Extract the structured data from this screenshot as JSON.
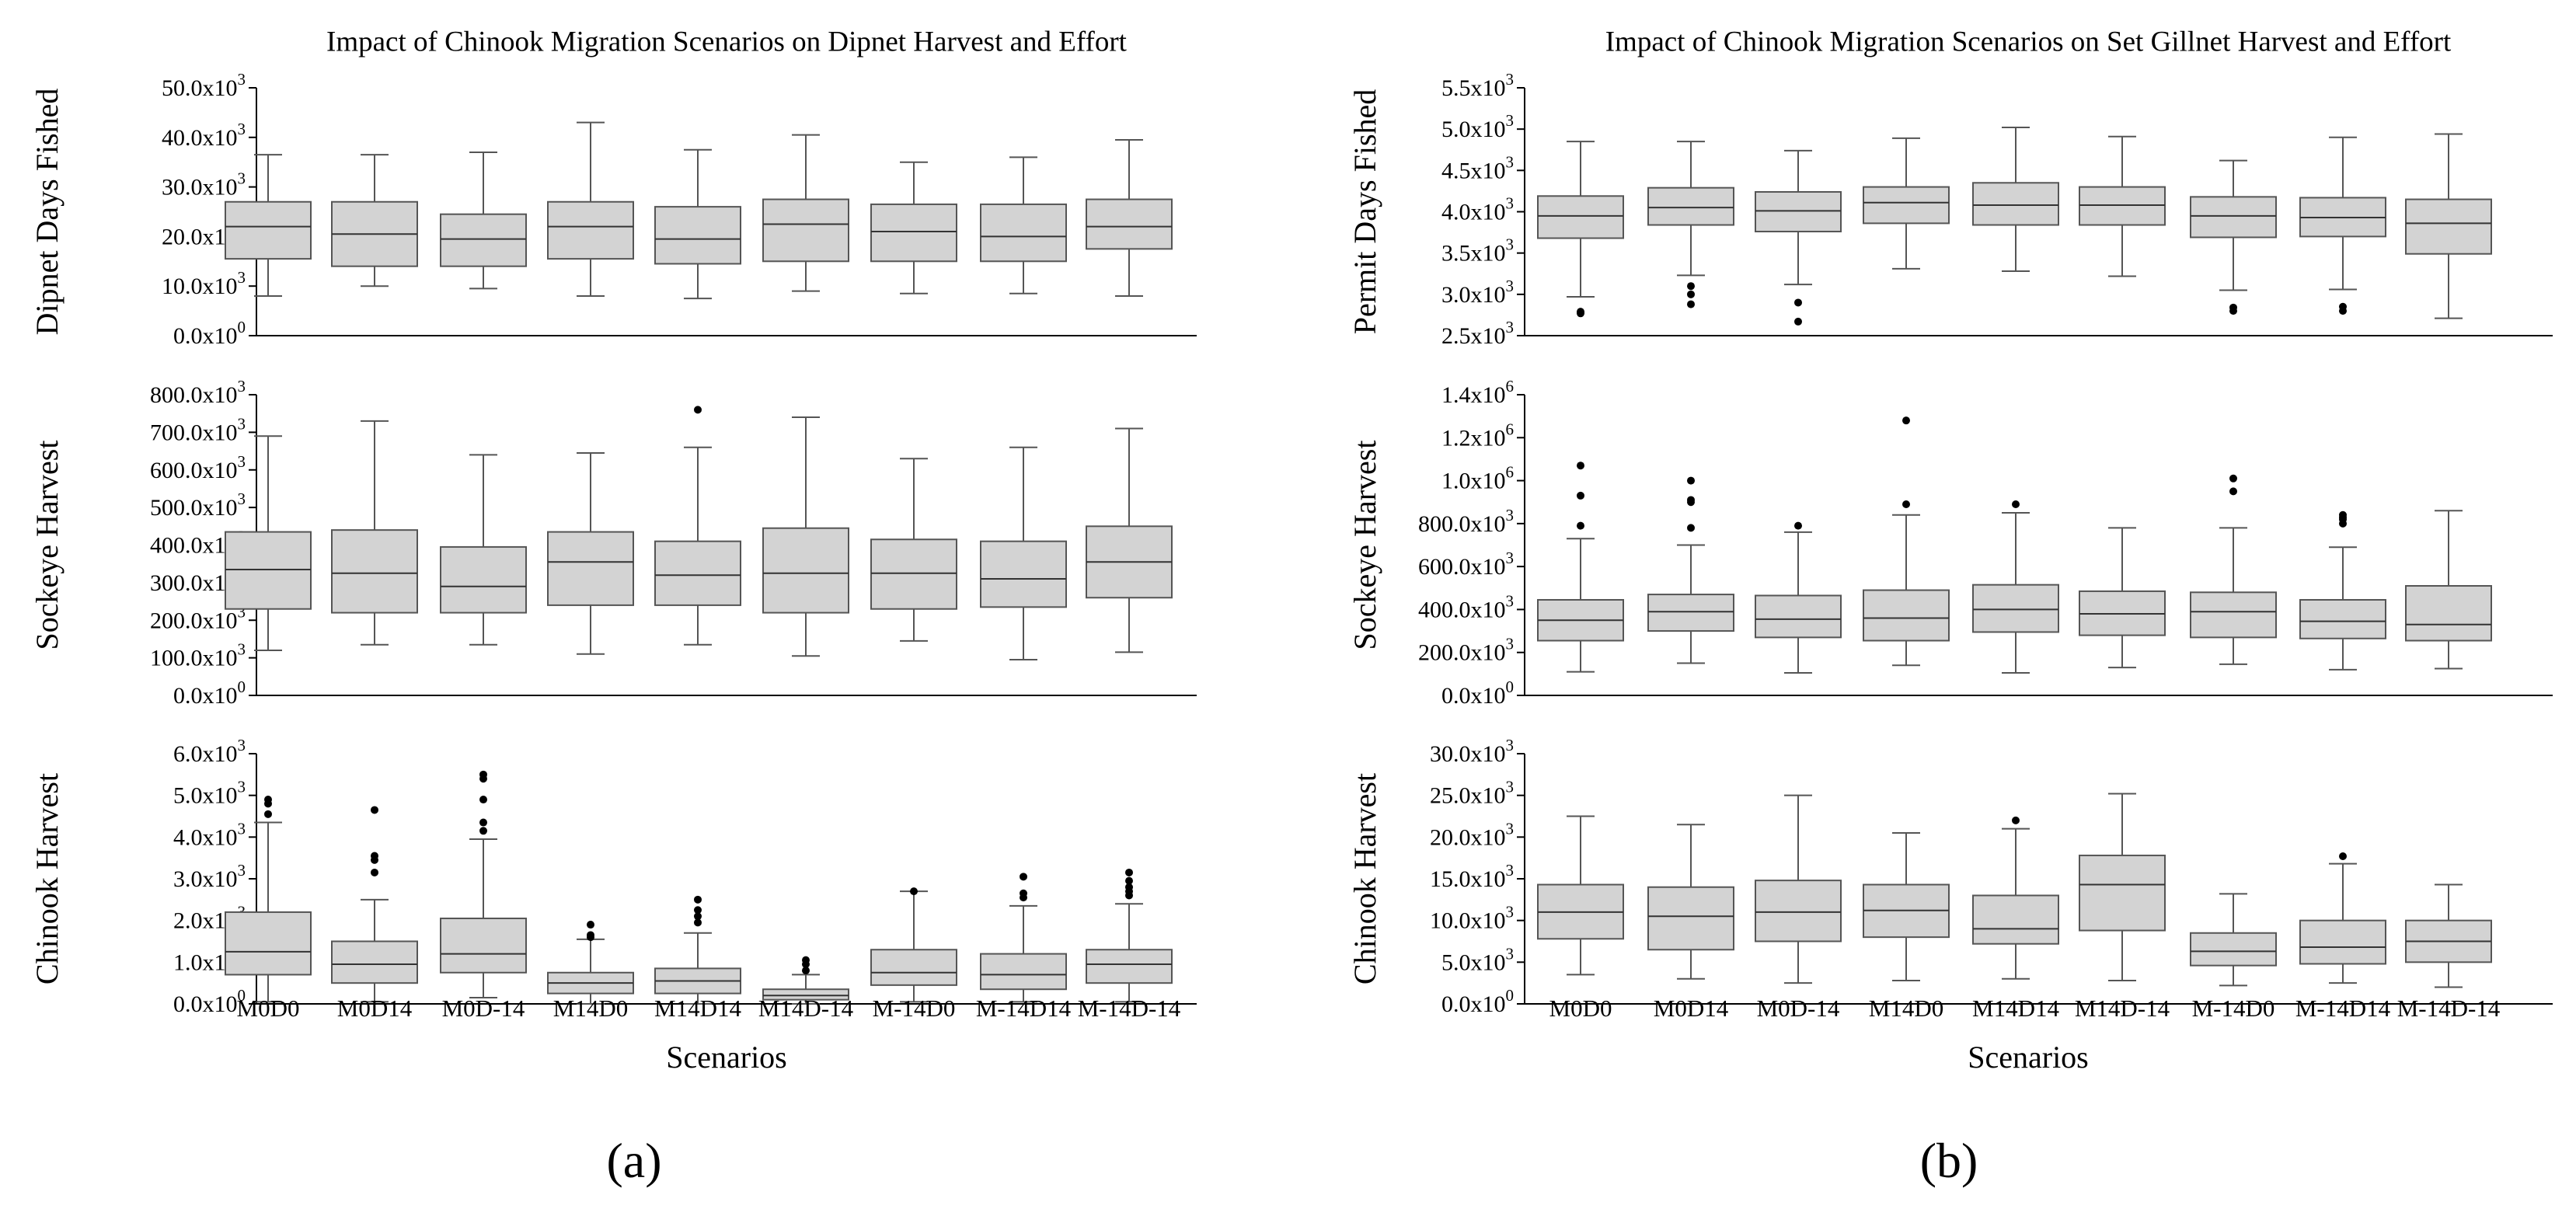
{
  "figure": {
    "tag_a": "(a)",
    "tag_b": "(b)"
  },
  "chart_data": [
    {
      "type": "box",
      "panel": "a",
      "title": "Impact of Chinook Migration Scenarios on Dipnet Harvest and Effort",
      "xlabel": "Scenarios",
      "categories": [
        "M0D0",
        "M0D14",
        "M0D-14",
        "M14D0",
        "M14D14",
        "M14D-14",
        "M-14D0",
        "M-14D14",
        "M-14D-14"
      ],
      "subplots": [
        {
          "ylabel": "Dipnet Days Fished",
          "ylim": [
            0,
            50000
          ],
          "yticks": [
            {
              "m": "0.0x10",
              "e": "0"
            },
            {
              "m": "10.0x10",
              "e": "3"
            },
            {
              "m": "20.0x10",
              "e": "3"
            },
            {
              "m": "30.0x10",
              "e": "3"
            },
            {
              "m": "40.0x10",
              "e": "3"
            },
            {
              "m": "50.0x10",
              "e": "3"
            }
          ],
          "boxes": [
            {
              "min": 8000,
              "q1": 15500,
              "med": 22000,
              "q3": 27000,
              "max": 36500,
              "outliers": []
            },
            {
              "min": 10000,
              "q1": 14000,
              "med": 20500,
              "q3": 27000,
              "max": 36500,
              "outliers": []
            },
            {
              "min": 9500,
              "q1": 14000,
              "med": 19500,
              "q3": 24500,
              "max": 37000,
              "outliers": []
            },
            {
              "min": 8000,
              "q1": 15500,
              "med": 22000,
              "q3": 27000,
              "max": 43000,
              "outliers": []
            },
            {
              "min": 7500,
              "q1": 14500,
              "med": 19500,
              "q3": 26000,
              "max": 37500,
              "outliers": []
            },
            {
              "min": 9000,
              "q1": 15000,
              "med": 22500,
              "q3": 27500,
              "max": 40500,
              "outliers": []
            },
            {
              "min": 8500,
              "q1": 15000,
              "med": 21000,
              "q3": 26500,
              "max": 35000,
              "outliers": []
            },
            {
              "min": 8500,
              "q1": 15000,
              "med": 20000,
              "q3": 26500,
              "max": 36000,
              "outliers": []
            },
            {
              "min": 8000,
              "q1": 17500,
              "med": 22000,
              "q3": 27500,
              "max": 39500,
              "outliers": []
            }
          ]
        },
        {
          "ylabel": "Sockeye Harvest",
          "ylim": [
            0,
            800000
          ],
          "yticks": [
            {
              "m": "0.0x10",
              "e": "0"
            },
            {
              "m": "100.0x10",
              "e": "3"
            },
            {
              "m": "200.0x10",
              "e": "3"
            },
            {
              "m": "300.0x10",
              "e": "3"
            },
            {
              "m": "400.0x10",
              "e": "3"
            },
            {
              "m": "500.0x10",
              "e": "3"
            },
            {
              "m": "600.0x10",
              "e": "3"
            },
            {
              "m": "700.0x10",
              "e": "3"
            },
            {
              "m": "800.0x10",
              "e": "3"
            }
          ],
          "boxes": [
            {
              "min": 120000,
              "q1": 230000,
              "med": 335000,
              "q3": 435000,
              "max": 690000,
              "outliers": []
            },
            {
              "min": 135000,
              "q1": 220000,
              "med": 325000,
              "q3": 440000,
              "max": 730000,
              "outliers": []
            },
            {
              "min": 135000,
              "q1": 220000,
              "med": 290000,
              "q3": 395000,
              "max": 640000,
              "outliers": []
            },
            {
              "min": 110000,
              "q1": 240000,
              "med": 355000,
              "q3": 435000,
              "max": 645000,
              "outliers": []
            },
            {
              "min": 135000,
              "q1": 240000,
              "med": 320000,
              "q3": 410000,
              "max": 660000,
              "outliers": [
                760000
              ]
            },
            {
              "min": 105000,
              "q1": 220000,
              "med": 325000,
              "q3": 445000,
              "max": 740000,
              "outliers": []
            },
            {
              "min": 145000,
              "q1": 230000,
              "med": 325000,
              "q3": 415000,
              "max": 630000,
              "outliers": []
            },
            {
              "min": 95000,
              "q1": 235000,
              "med": 310000,
              "q3": 410000,
              "max": 660000,
              "outliers": []
            },
            {
              "min": 115000,
              "q1": 260000,
              "med": 355000,
              "q3": 450000,
              "max": 710000,
              "outliers": []
            }
          ]
        },
        {
          "ylabel": "Chinook Harvest",
          "ylim": [
            0,
            6000
          ],
          "yticks": [
            {
              "m": "0.0x10",
              "e": "0"
            },
            {
              "m": "1.0x10",
              "e": "3"
            },
            {
              "m": "2.0x10",
              "e": "3"
            },
            {
              "m": "3.0x10",
              "e": "3"
            },
            {
              "m": "4.0x10",
              "e": "3"
            },
            {
              "m": "5.0x10",
              "e": "3"
            },
            {
              "m": "6.0x10",
              "e": "3"
            }
          ],
          "boxes": [
            {
              "min": 50,
              "q1": 700,
              "med": 1250,
              "q3": 2200,
              "max": 4350,
              "outliers": [
                4550,
                4800,
                4900
              ]
            },
            {
              "min": 50,
              "q1": 500,
              "med": 950,
              "q3": 1500,
              "max": 2500,
              "outliers": [
                3150,
                3450,
                3550,
                4650
              ]
            },
            {
              "min": 150,
              "q1": 750,
              "med": 1200,
              "q3": 2050,
              "max": 3950,
              "outliers": [
                4150,
                4350,
                4900,
                5400,
                5500
              ]
            },
            {
              "min": 0,
              "q1": 250,
              "med": 500,
              "q3": 750,
              "max": 1550,
              "outliers": [
                1600,
                1650,
                1900
              ]
            },
            {
              "min": 0,
              "q1": 250,
              "med": 550,
              "q3": 850,
              "max": 1700,
              "outliers": [
                1950,
                2100,
                2250,
                2500
              ]
            },
            {
              "min": 0,
              "q1": 100,
              "med": 200,
              "q3": 350,
              "max": 700,
              "outliers": [
                800,
                950,
                1050
              ]
            },
            {
              "min": 50,
              "q1": 450,
              "med": 750,
              "q3": 1300,
              "max": 2700,
              "outliers": [
                2700
              ]
            },
            {
              "min": 50,
              "q1": 350,
              "med": 700,
              "q3": 1200,
              "max": 2350,
              "outliers": [
                2550,
                2650,
                3050
              ]
            },
            {
              "min": 50,
              "q1": 500,
              "med": 950,
              "q3": 1300,
              "max": 2400,
              "outliers": [
                2600,
                2700,
                2800,
                2950,
                3150
              ]
            }
          ]
        }
      ]
    },
    {
      "type": "box",
      "panel": "b",
      "title": "Impact of Chinook Migration Scenarios on Set Gillnet Harvest and Effort",
      "xlabel": "Scenarios",
      "categories": [
        "M0D0",
        "M0D14",
        "M0D-14",
        "M14D0",
        "M14D14",
        "M14D-14",
        "M-14D0",
        "M-14D14",
        "M-14D-14"
      ],
      "subplots": [
        {
          "ylabel": "Permit Days Fished",
          "ylim": [
            2500,
            5500
          ],
          "yticks": [
            {
              "m": "2.5x10",
              "e": "3"
            },
            {
              "m": "3.0x10",
              "e": "3"
            },
            {
              "m": "3.5x10",
              "e": "3"
            },
            {
              "m": "4.0x10",
              "e": "3"
            },
            {
              "m": "4.5x10",
              "e": "3"
            },
            {
              "m": "5.0x10",
              "e": "3"
            },
            {
              "m": "5.5x10",
              "e": "3"
            }
          ],
          "boxes": [
            {
              "min": 2970,
              "q1": 3680,
              "med": 3950,
              "q3": 4190,
              "max": 4850,
              "outliers": [
                2770,
                2780,
                2790
              ]
            },
            {
              "min": 3230,
              "q1": 3840,
              "med": 4050,
              "q3": 4290,
              "max": 4850,
              "outliers": [
                2880,
                3000,
                3100
              ]
            },
            {
              "min": 3120,
              "q1": 3760,
              "med": 4010,
              "q3": 4240,
              "max": 4740,
              "outliers": [
                2670,
                2900
              ]
            },
            {
              "min": 3310,
              "q1": 3860,
              "med": 4110,
              "q3": 4300,
              "max": 4890,
              "outliers": []
            },
            {
              "min": 3280,
              "q1": 3840,
              "med": 4080,
              "q3": 4350,
              "max": 5020,
              "outliers": []
            },
            {
              "min": 3220,
              "q1": 3840,
              "med": 4080,
              "q3": 4300,
              "max": 4910,
              "outliers": []
            },
            {
              "min": 3050,
              "q1": 3690,
              "med": 3950,
              "q3": 4180,
              "max": 4620,
              "outliers": [
                2800,
                2840
              ]
            },
            {
              "min": 3060,
              "q1": 3700,
              "med": 3930,
              "q3": 4170,
              "max": 4900,
              "outliers": [
                2800,
                2850
              ]
            },
            {
              "min": 2710,
              "q1": 3490,
              "med": 3860,
              "q3": 4150,
              "max": 4940,
              "outliers": []
            }
          ]
        },
        {
          "ylabel": "Sockeye Harvest",
          "ylim": [
            0,
            1400000
          ],
          "yticks": [
            {
              "m": "0.0x10",
              "e": "0"
            },
            {
              "m": "200.0x10",
              "e": "3"
            },
            {
              "m": "400.0x10",
              "e": "3"
            },
            {
              "m": "600.0x10",
              "e": "3"
            },
            {
              "m": "800.0x10",
              "e": "3"
            },
            {
              "m": "1.0x10",
              "e": "6"
            },
            {
              "m": "1.2x10",
              "e": "6"
            },
            {
              "m": "1.4x10",
              "e": "6"
            }
          ],
          "boxes": [
            {
              "min": 110000,
              "q1": 255000,
              "med": 350000,
              "q3": 445000,
              "max": 730000,
              "outliers": [
                790000,
                930000,
                1070000
              ]
            },
            {
              "min": 150000,
              "q1": 300000,
              "med": 390000,
              "q3": 470000,
              "max": 700000,
              "outliers": [
                780000,
                900000,
                910000,
                1000000
              ]
            },
            {
              "min": 105000,
              "q1": 270000,
              "med": 355000,
              "q3": 465000,
              "max": 760000,
              "outliers": [
                790000
              ]
            },
            {
              "min": 140000,
              "q1": 255000,
              "med": 360000,
              "q3": 490000,
              "max": 840000,
              "outliers": [
                890000,
                1280000
              ]
            },
            {
              "min": 105000,
              "q1": 295000,
              "med": 400000,
              "q3": 515000,
              "max": 850000,
              "outliers": [
                890000
              ]
            },
            {
              "min": 130000,
              "q1": 280000,
              "med": 380000,
              "q3": 485000,
              "max": 780000,
              "outliers": []
            },
            {
              "min": 145000,
              "q1": 270000,
              "med": 390000,
              "q3": 480000,
              "max": 780000,
              "outliers": [
                950000,
                1010000
              ]
            },
            {
              "min": 120000,
              "q1": 265000,
              "med": 345000,
              "q3": 445000,
              "max": 690000,
              "outliers": [
                800000,
                820000,
                830000,
                840000
              ]
            },
            {
              "min": 125000,
              "q1": 255000,
              "med": 330000,
              "q3": 510000,
              "max": 860000,
              "outliers": []
            }
          ]
        },
        {
          "ylabel": "Chinook Harvest",
          "ylim": [
            0,
            30000
          ],
          "yticks": [
            {
              "m": "0.0x10",
              "e": "0"
            },
            {
              "m": "5.0x10",
              "e": "3"
            },
            {
              "m": "10.0x10",
              "e": "3"
            },
            {
              "m": "15.0x10",
              "e": "3"
            },
            {
              "m": "20.0x10",
              "e": "3"
            },
            {
              "m": "25.0x10",
              "e": "3"
            },
            {
              "m": "30.0x10",
              "e": "3"
            }
          ],
          "boxes": [
            {
              "min": 3500,
              "q1": 7800,
              "med": 11000,
              "q3": 14300,
              "max": 22500,
              "outliers": []
            },
            {
              "min": 3000,
              "q1": 6500,
              "med": 10500,
              "q3": 14000,
              "max": 21500,
              "outliers": []
            },
            {
              "min": 2500,
              "q1": 7500,
              "med": 11000,
              "q3": 14800,
              "max": 25000,
              "outliers": []
            },
            {
              "min": 2800,
              "q1": 8000,
              "med": 11200,
              "q3": 14300,
              "max": 20500,
              "outliers": []
            },
            {
              "min": 3000,
              "q1": 7200,
              "med": 9000,
              "q3": 13000,
              "max": 21000,
              "outliers": [
                22000
              ]
            },
            {
              "min": 2800,
              "q1": 8800,
              "med": 14300,
              "q3": 17800,
              "max": 25200,
              "outliers": []
            },
            {
              "min": 2200,
              "q1": 4600,
              "med": 6300,
              "q3": 8500,
              "max": 13200,
              "outliers": []
            },
            {
              "min": 2500,
              "q1": 4800,
              "med": 6800,
              "q3": 10000,
              "max": 16800,
              "outliers": [
                17700
              ]
            },
            {
              "min": 2000,
              "q1": 5000,
              "med": 7500,
              "q3": 10000,
              "max": 14300,
              "outliers": []
            }
          ]
        }
      ]
    }
  ]
}
